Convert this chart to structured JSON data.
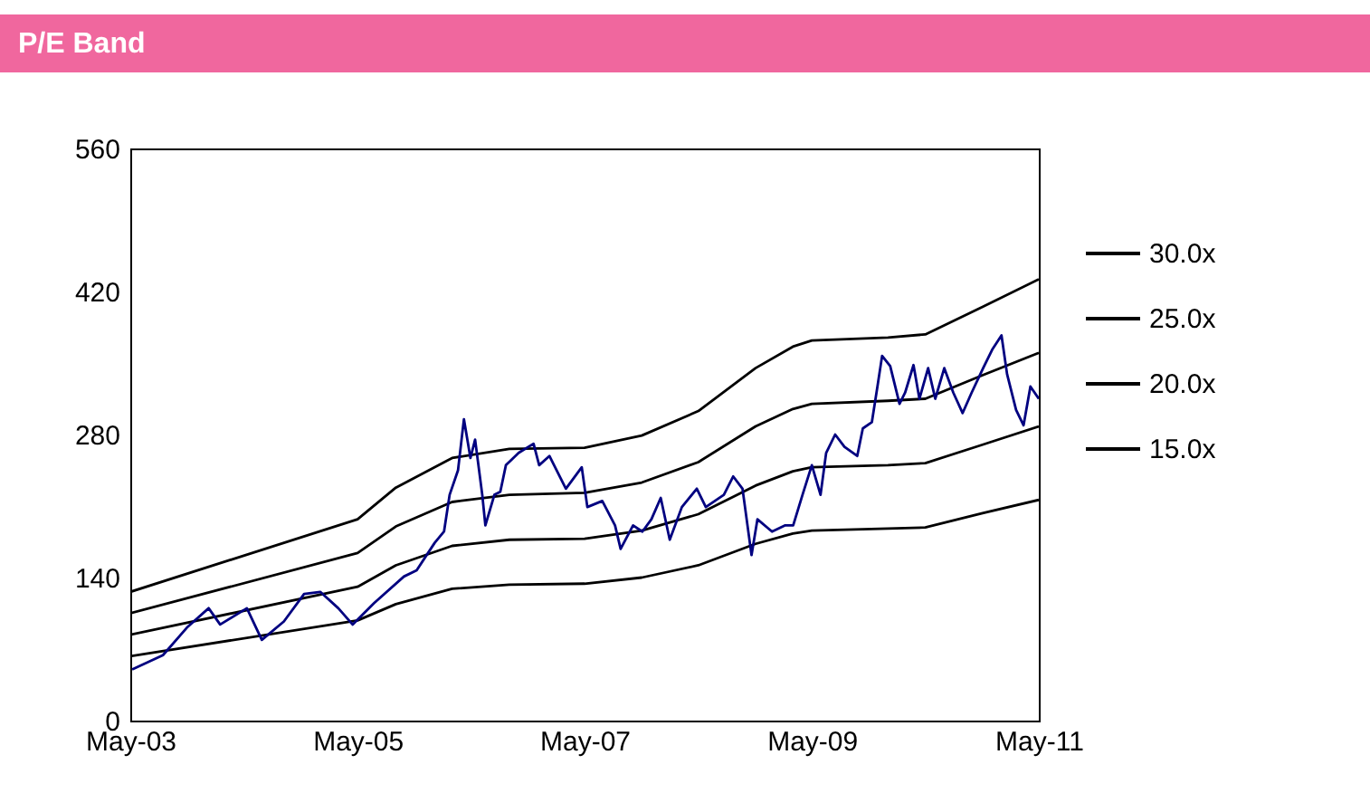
{
  "chart_data": {
    "type": "line",
    "title": "P/E Band",
    "x": [
      "2003-05-01",
      "2005-05-01",
      "2005-09-01",
      "2006-03-01",
      "2006-09-01",
      "2007-05-01",
      "2007-11-01",
      "2008-05-01",
      "2008-11-01",
      "2009-03-01",
      "2009-05-01",
      "2010-01-01",
      "2010-05-01",
      "2010-11-01",
      "2011-05-01"
    ],
    "series": [
      {
        "name": "30.0x",
        "color": "#000000",
        "values": [
          126,
          197,
          228,
          257,
          266,
          267,
          279,
          303,
          345,
          366,
          372,
          375,
          378,
          405,
          432
        ]
      },
      {
        "name": "25.0x",
        "color": "#000000",
        "values": [
          105,
          164,
          190,
          214,
          221,
          223,
          233,
          253,
          288,
          305,
          310,
          313,
          315,
          338,
          360
        ]
      },
      {
        "name": "20.0x",
        "color": "#000000",
        "values": [
          84,
          131,
          152,
          171,
          177,
          178,
          186,
          202,
          230,
          244,
          248,
          250,
          252,
          270,
          288
        ]
      },
      {
        "name": "15.0x",
        "color": "#000000",
        "values": [
          63,
          98,
          114,
          129,
          133,
          134,
          140,
          152,
          173,
          183,
          186,
          188,
          189,
          203,
          216
        ]
      },
      {
        "color": "#000080",
        "x": [
          "2003-05-07",
          "2003-08-14",
          "2003-10-30",
          "2004-01-08",
          "2004-02-14",
          "2004-05-10",
          "2004-06-27",
          "2004-09-06",
          "2004-11-10",
          "2005-01-01",
          "2005-02-28",
          "2005-04-15",
          "2005-06-23",
          "2005-09-27",
          "2005-11-07",
          "2006-01-04",
          "2006-02-03",
          "2006-02-21",
          "2006-03-20",
          "2006-04-08",
          "2006-04-29",
          "2006-05-14",
          "2006-06-06",
          "2006-06-16",
          "2006-07-15",
          "2006-08-03",
          "2006-08-21",
          "2006-10-01",
          "2006-11-18",
          "2006-12-06",
          "2007-01-08",
          "2007-03-02",
          "2007-04-22",
          "2007-05-10",
          "2007-06-27",
          "2007-08-07",
          "2007-08-25",
          "2007-10-04",
          "2007-11-03",
          "2007-12-02",
          "2008-01-01",
          "2008-01-30",
          "2008-03-09",
          "2008-04-26",
          "2008-05-25",
          "2008-07-22",
          "2008-08-21",
          "2008-09-20",
          "2008-10-19",
          "2008-11-07",
          "2008-12-24",
          "2009-02-03",
          "2009-03-02",
          "2009-04-01",
          "2009-05-01",
          "2009-05-29",
          "2009-06-16",
          "2009-07-15",
          "2009-08-14",
          "2009-09-24",
          "2009-10-12",
          "2009-11-10",
          "2009-11-28",
          "2009-12-13",
          "2010-01-08",
          "2010-02-07",
          "2010-02-25",
          "2010-03-24",
          "2010-04-12",
          "2010-05-10",
          "2010-06-02",
          "2010-07-01",
          "2010-07-30",
          "2010-08-29",
          "2010-09-27",
          "2010-11-03",
          "2010-12-02",
          "2011-01-01",
          "2011-01-19",
          "2011-02-17",
          "2011-03-13",
          "2011-04-04",
          "2011-05-01"
        ],
        "values": [
          50,
          64,
          91,
          110,
          94,
          110,
          79,
          97,
          124,
          126,
          110,
          94,
          115,
          141,
          147,
          174,
          185,
          221,
          245,
          295,
          257,
          275,
          221,
          191,
          221,
          224,
          250,
          262,
          271,
          250,
          259,
          227,
          248,
          209,
          215,
          191,
          168,
          191,
          185,
          197,
          218,
          177,
          209,
          227,
          209,
          221,
          239,
          227,
          162,
          197,
          185,
          191,
          191,
          221,
          250,
          221,
          262,
          280,
          268,
          259,
          286,
          292,
          327,
          357,
          347,
          310,
          321,
          348,
          315,
          345,
          315,
          345,
          321,
          301,
          321,
          345,
          363,
          377,
          339,
          304,
          289,
          327,
          315
        ]
      }
    ],
    "xlim": [
      "2003-05-01",
      "2011-05-01"
    ],
    "xticks": [
      {
        "value": "2003-05-01",
        "label": "May-03"
      },
      {
        "value": "2005-05-01",
        "label": "May-05"
      },
      {
        "value": "2007-05-01",
        "label": "May-07"
      },
      {
        "value": "2009-05-01",
        "label": "May-09"
      },
      {
        "value": "2011-05-01",
        "label": "May-11"
      }
    ],
    "ylim": [
      0,
      560
    ],
    "yticks": [
      0,
      140,
      280,
      420,
      560
    ],
    "legend": "right"
  }
}
